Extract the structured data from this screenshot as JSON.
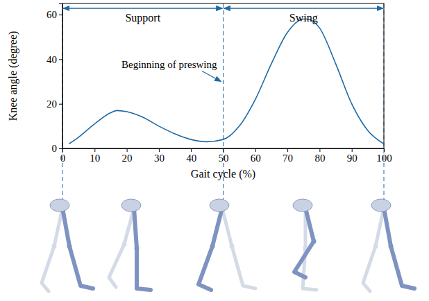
{
  "chart_data": {
    "type": "line",
    "xlabel": "Gait cycle (%)",
    "ylabel": "Knee angle (degree)",
    "x": [
      2,
      5,
      10,
      15,
      17,
      20,
      25,
      30,
      35,
      40,
      45,
      50,
      55,
      60,
      65,
      70,
      75,
      76,
      80,
      85,
      90,
      95,
      100
    ],
    "values": [
      2,
      5,
      11,
      16,
      17,
      16.5,
      14,
      10,
      6.5,
      4,
      3,
      4,
      10,
      22,
      38,
      52,
      58,
      58,
      54,
      38,
      20,
      8,
      2
    ],
    "color": "#1f6aa5",
    "xlim": [
      0,
      100
    ],
    "ylim": [
      0,
      65
    ],
    "xticks": [
      0,
      10,
      20,
      30,
      40,
      50,
      60,
      70,
      80,
      90,
      100
    ],
    "yticks": [
      0,
      20,
      40,
      60
    ],
    "grid": false,
    "phases": [
      {
        "label": "Support",
        "start": 0,
        "end": 50
      },
      {
        "label": "Swing",
        "start": 50,
        "end": 100
      }
    ],
    "annotations": [
      {
        "text": "Beginning of preswing",
        "x": 50,
        "y": 30
      }
    ]
  }
}
